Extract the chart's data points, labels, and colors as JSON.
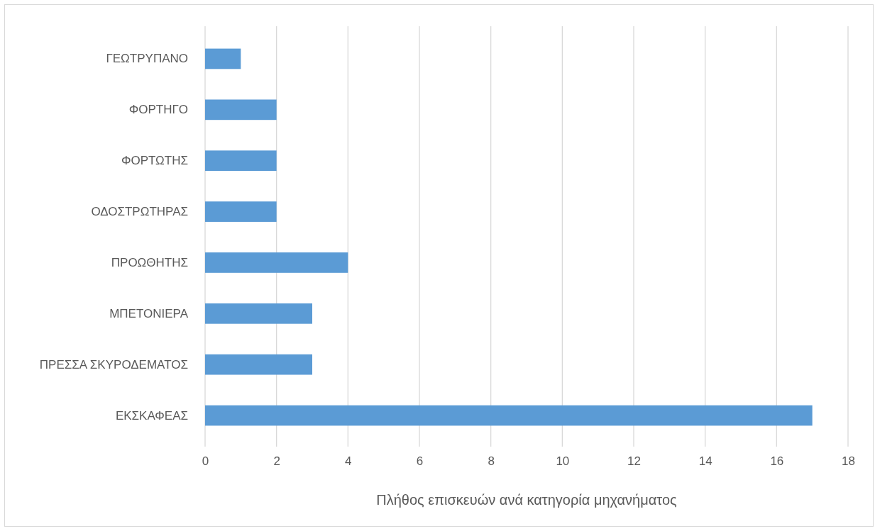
{
  "chart_data": {
    "type": "bar",
    "orientation": "horizontal",
    "xlabel": "Πλήθος επισκευών ανά κατηγορία μηχανήματος",
    "categories": [
      "ΓΕΩΤΡΥΠΑΝΟ",
      "ΦΟΡΤΗΓΟ",
      "ΦΟΡΤΩΤΗΣ",
      "ΟΔΟΣΤΡΩΤΗΡΑΣ",
      "ΠΡΟΩΘΗΤΗΣ",
      "ΜΠΕΤΟΝΙΕΡΑ",
      "ΠΡΕΣΣΑ ΣΚΥΡΟΔΕΜΑΤΟΣ",
      "ΕΚΣΚΑΦΕΑΣ"
    ],
    "values": [
      1,
      2,
      2,
      2,
      4,
      3,
      3,
      17
    ],
    "color": "#5b9bd5",
    "xlim": [
      0,
      18
    ],
    "xticks": [
      0,
      2,
      4,
      6,
      8,
      10,
      12,
      14,
      16,
      18
    ],
    "grid": "x"
  }
}
